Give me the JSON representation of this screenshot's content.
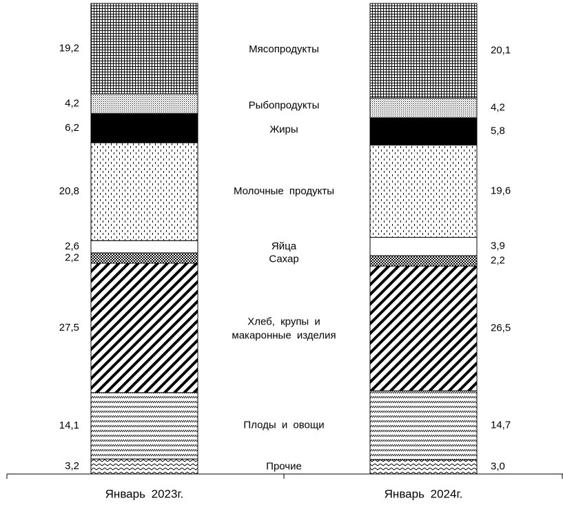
{
  "chart_data": {
    "type": "stacked_bar",
    "categories": [
      "Январь 2023г.",
      "Январь 2024г."
    ],
    "ylim": [
      0,
      100
    ],
    "series": [
      {
        "name": "Прочие",
        "values": [
          3.2,
          3.0
        ],
        "value_labels": [
          "3,2",
          "3,0"
        ]
      },
      {
        "name": "Плоды и овощи",
        "values": [
          14.1,
          14.7
        ],
        "value_labels": [
          "14,1",
          "14,7"
        ]
      },
      {
        "name": "Хлеб, крупы и макаронные изделия",
        "values": [
          27.5,
          26.5
        ],
        "value_labels": [
          "27,5",
          "26,5"
        ]
      },
      {
        "name": "Сахар",
        "values": [
          2.2,
          2.2
        ],
        "value_labels": [
          "2,2",
          "2,2"
        ]
      },
      {
        "name": "Яйца",
        "values": [
          2.6,
          3.9
        ],
        "value_labels": [
          "2,6",
          "3,9"
        ]
      },
      {
        "name": "Молочные продукты",
        "values": [
          20.8,
          19.6
        ],
        "value_labels": [
          "20,8",
          "19,6"
        ]
      },
      {
        "name": "Жиры",
        "values": [
          6.2,
          5.8
        ],
        "value_labels": [
          "6,2",
          "5,8"
        ]
      },
      {
        "name": "Рыбопродукты",
        "values": [
          4.2,
          4.2
        ],
        "value_labels": [
          "4,2",
          "4,2"
        ]
      },
      {
        "name": "Мясопродукты",
        "values": [
          19.2,
          20.1
        ],
        "value_labels": [
          "19,2",
          "20,1"
        ]
      }
    ]
  }
}
